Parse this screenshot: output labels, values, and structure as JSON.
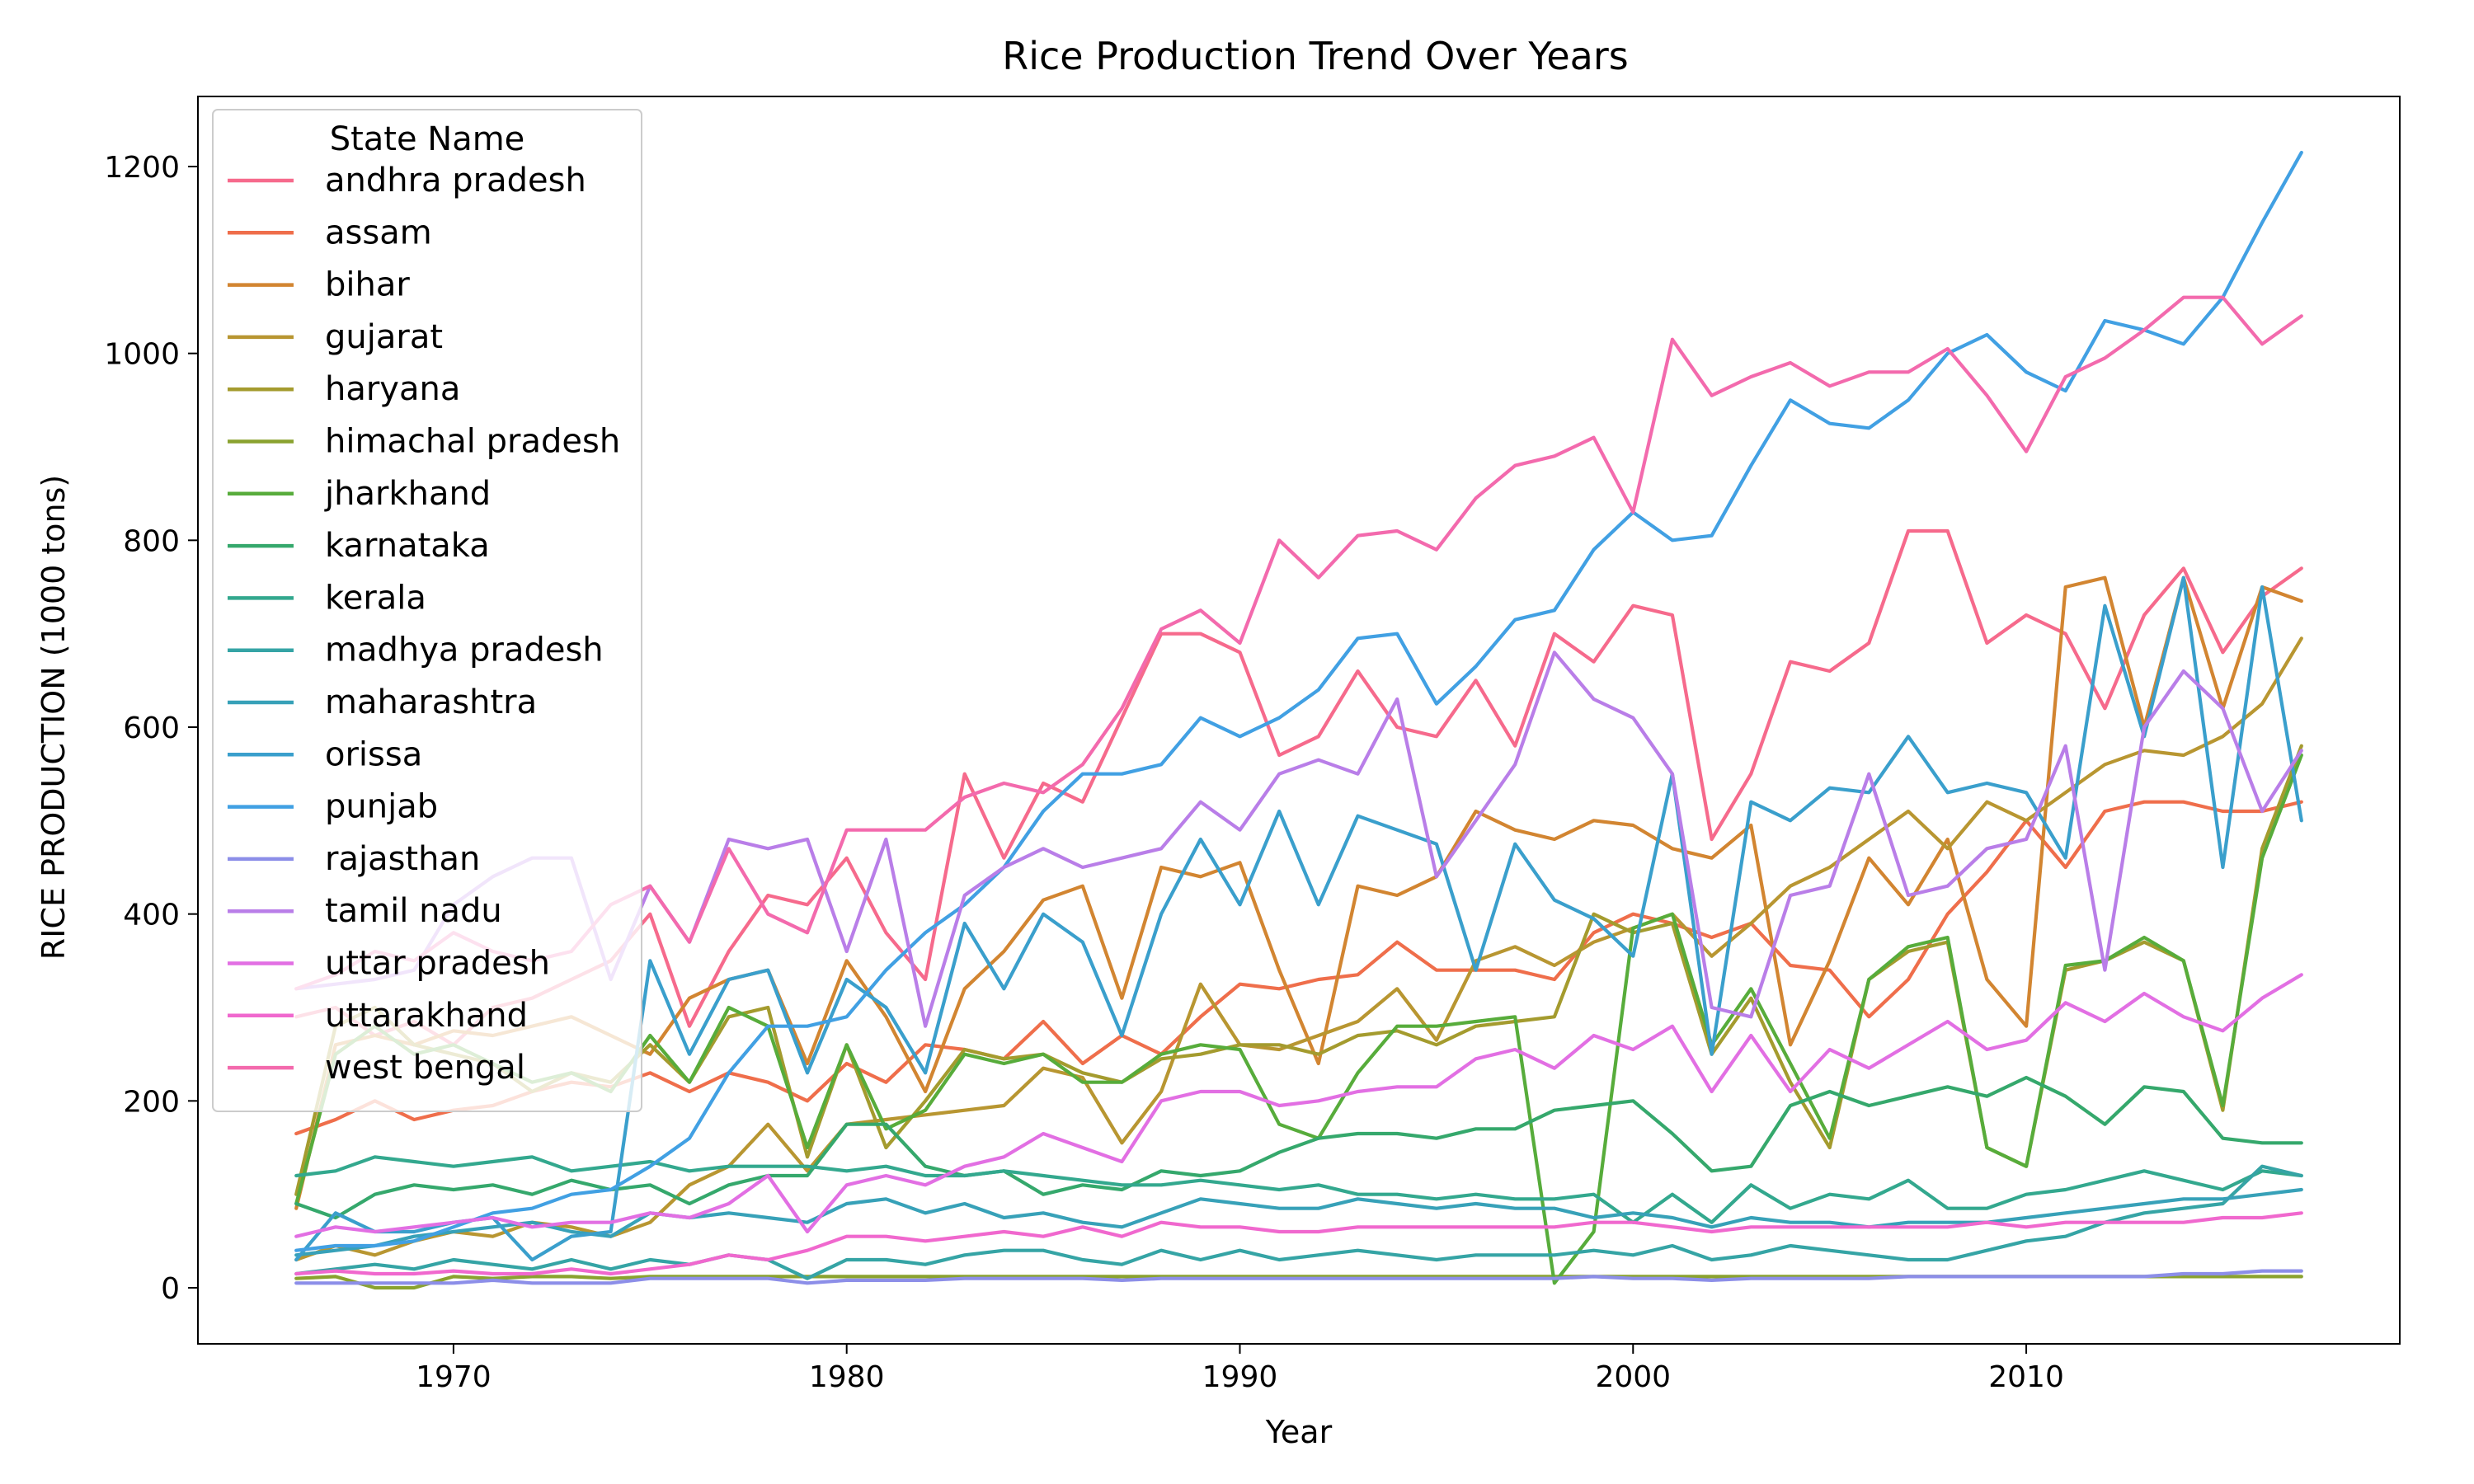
{
  "chart_data": {
    "type": "line",
    "title": "Rice Production Trend Over Years",
    "xlabel": "Year",
    "ylabel": "RICE PRODUCTION (1000 tons)",
    "xlim": [
      1963.5,
      2019.5
    ],
    "ylim": [
      -60,
      1275
    ],
    "x_ticks": [
      1970,
      1980,
      1990,
      2000,
      2010
    ],
    "y_ticks": [
      0,
      200,
      400,
      600,
      800,
      1000,
      1200
    ],
    "grid": false,
    "legend": {
      "title": "State Name",
      "placement": "top-left"
    },
    "x": [
      1966,
      1967,
      1968,
      1969,
      1970,
      1971,
      1972,
      1973,
      1974,
      1975,
      1976,
      1977,
      1978,
      1979,
      1980,
      1981,
      1982,
      1983,
      1984,
      1985,
      1986,
      1987,
      1988,
      1989,
      1990,
      1991,
      1992,
      1993,
      1994,
      1995,
      1996,
      1997,
      1998,
      1999,
      2000,
      2001,
      2002,
      2003,
      2004,
      2005,
      2006,
      2007,
      2008,
      2009,
      2010,
      2011,
      2012,
      2013,
      2014,
      2015,
      2016,
      2017
    ],
    "series": [
      {
        "name": "andhra pradesh",
        "color": "#f66a8c",
        "values": [
          290,
          300,
          270,
          285,
          260,
          300,
          310,
          330,
          350,
          400,
          280,
          360,
          420,
          410,
          460,
          380,
          330,
          550,
          460,
          540,
          520,
          610,
          700,
          700,
          680,
          570,
          590,
          660,
          600,
          590,
          650,
          580,
          700,
          670,
          730,
          720,
          480,
          550,
          670,
          660,
          690,
          810,
          810,
          690,
          720,
          700,
          620,
          720,
          770,
          680,
          740,
          770
        ]
      },
      {
        "name": "assam",
        "color": "#ef6e4b",
        "values": [
          165,
          180,
          200,
          180,
          190,
          195,
          210,
          220,
          215,
          230,
          210,
          230,
          220,
          200,
          240,
          220,
          260,
          255,
          245,
          285,
          240,
          270,
          250,
          290,
          325,
          320,
          330,
          335,
          370,
          340,
          340,
          340,
          330,
          380,
          400,
          390,
          375,
          390,
          345,
          340,
          290,
          330,
          400,
          445,
          500,
          450,
          510,
          520,
          520,
          510,
          510,
          520
        ]
      },
      {
        "name": "bihar",
        "color": "#d28531",
        "values": [
          85,
          260,
          270,
          260,
          275,
          270,
          280,
          290,
          270,
          250,
          310,
          330,
          340,
          240,
          350,
          290,
          210,
          320,
          360,
          415,
          430,
          310,
          450,
          440,
          455,
          340,
          240,
          430,
          420,
          440,
          510,
          490,
          480,
          500,
          495,
          470,
          460,
          495,
          260,
          350,
          460,
          410,
          480,
          330,
          280,
          750,
          760,
          600,
          760,
          620,
          750,
          735
        ]
      },
      {
        "name": "gujarat",
        "color": "#b89631",
        "values": [
          30,
          45,
          35,
          50,
          60,
          55,
          70,
          65,
          55,
          70,
          110,
          130,
          175,
          125,
          175,
          180,
          185,
          190,
          195,
          235,
          225,
          155,
          210,
          325,
          260,
          255,
          270,
          285,
          320,
          265,
          350,
          365,
          345,
          370,
          385,
          400,
          355,
          390,
          430,
          450,
          480,
          510,
          470,
          520,
          500,
          530,
          560,
          575,
          570,
          590,
          625,
          695
        ]
      },
      {
        "name": "haryana",
        "color": "#a49b2e",
        "values": [
          100,
          280,
          300,
          260,
          250,
          240,
          210,
          230,
          220,
          260,
          220,
          290,
          300,
          140,
          260,
          150,
          200,
          255,
          245,
          250,
          230,
          220,
          245,
          250,
          260,
          260,
          250,
          270,
          275,
          260,
          280,
          285,
          290,
          400,
          380,
          390,
          250,
          310,
          220,
          150,
          330,
          360,
          370,
          150,
          130,
          340,
          350,
          370,
          350,
          190,
          470,
          580
        ]
      },
      {
        "name": "himachal pradesh",
        "color": "#8aa22f",
        "values": [
          10,
          12,
          0,
          0,
          12,
          10,
          12,
          12,
          10,
          12,
          12,
          12,
          12,
          12,
          12,
          12,
          12,
          12,
          12,
          12,
          12,
          12,
          12,
          12,
          12,
          12,
          12,
          12,
          12,
          12,
          12,
          12,
          12,
          12,
          12,
          12,
          12,
          12,
          12,
          12,
          12,
          12,
          12,
          12,
          12,
          12,
          12,
          12,
          12,
          12,
          12,
          12
        ]
      },
      {
        "name": "jharkhand",
        "color": "#57ac3b",
        "values": [
          90,
          250,
          280,
          250,
          260,
          240,
          220,
          230,
          210,
          270,
          220,
          300,
          280,
          150,
          260,
          170,
          190,
          250,
          240,
          250,
          220,
          220,
          250,
          260,
          255,
          175,
          160,
          230,
          280,
          280,
          285,
          290,
          5,
          60,
          385,
          400,
          260,
          320,
          240,
          160,
          330,
          365,
          375,
          150,
          130,
          345,
          350,
          375,
          350,
          195,
          460,
          570
        ]
      },
      {
        "name": "karnataka",
        "color": "#35a86c",
        "values": [
          90,
          75,
          100,
          110,
          105,
          110,
          100,
          115,
          105,
          110,
          90,
          110,
          120,
          120,
          175,
          175,
          130,
          120,
          125,
          100,
          110,
          105,
          125,
          120,
          125,
          145,
          160,
          165,
          165,
          160,
          170,
          170,
          190,
          195,
          200,
          165,
          125,
          130,
          195,
          210,
          195,
          205,
          215,
          205,
          225,
          205,
          175,
          215,
          210,
          160,
          155,
          155
        ]
      },
      {
        "name": "kerala",
        "color": "#33a88e",
        "values": [
          120,
          125,
          140,
          135,
          130,
          135,
          140,
          125,
          130,
          135,
          125,
          130,
          130,
          130,
          125,
          130,
          120,
          120,
          125,
          120,
          115,
          110,
          110,
          115,
          110,
          105,
          110,
          100,
          100,
          95,
          100,
          95,
          95,
          100,
          70,
          100,
          70,
          110,
          85,
          100,
          95,
          115,
          85,
          85,
          100,
          105,
          115,
          125,
          115,
          105,
          125,
          120
        ]
      },
      {
        "name": "madhya pradesh",
        "color": "#35a4a5",
        "values": [
          15,
          20,
          25,
          20,
          30,
          25,
          20,
          30,
          20,
          30,
          25,
          35,
          30,
          10,
          30,
          30,
          25,
          35,
          40,
          40,
          30,
          25,
          40,
          30,
          40,
          30,
          35,
          40,
          35,
          30,
          35,
          35,
          35,
          40,
          35,
          45,
          30,
          35,
          45,
          40,
          35,
          30,
          30,
          40,
          50,
          55,
          70,
          80,
          85,
          90,
          130,
          120
        ]
      },
      {
        "name": "maharashtra",
        "color": "#37a1b8",
        "values": [
          35,
          40,
          45,
          55,
          60,
          65,
          70,
          60,
          55,
          80,
          75,
          80,
          75,
          70,
          90,
          95,
          80,
          90,
          75,
          80,
          70,
          65,
          80,
          95,
          90,
          85,
          85,
          95,
          90,
          85,
          90,
          85,
          85,
          75,
          80,
          75,
          65,
          75,
          70,
          70,
          65,
          70,
          70,
          70,
          75,
          80,
          85,
          90,
          95,
          95,
          100,
          105
        ]
      },
      {
        "name": "orissa",
        "color": "#3a9fcc",
        "values": [
          30,
          80,
          60,
          60,
          70,
          75,
          30,
          55,
          60,
          350,
          250,
          330,
          340,
          230,
          330,
          300,
          230,
          390,
          320,
          400,
          370,
          270,
          400,
          480,
          410,
          510,
          410,
          505,
          490,
          475,
          340,
          475,
          415,
          395,
          355,
          550,
          250,
          520,
          500,
          535,
          530,
          590,
          530,
          540,
          530,
          460,
          730,
          590,
          760,
          450,
          750,
          500
        ]
      },
      {
        "name": "punjab",
        "color": "#41a0e3",
        "values": [
          40,
          45,
          45,
          50,
          65,
          80,
          85,
          100,
          105,
          130,
          160,
          230,
          280,
          280,
          290,
          340,
          380,
          410,
          450,
          510,
          550,
          550,
          560,
          610,
          590,
          610,
          640,
          695,
          700,
          625,
          665,
          715,
          725,
          790,
          830,
          800,
          805,
          880,
          950,
          925,
          920,
          950,
          1000,
          1020,
          980,
          960,
          1035,
          1025,
          1010,
          1060,
          1140,
          1215
        ]
      },
      {
        "name": "rajasthan",
        "color": "#8c8ee8",
        "values": [
          5,
          5,
          5,
          5,
          5,
          8,
          5,
          5,
          5,
          10,
          10,
          10,
          10,
          5,
          8,
          8,
          8,
          10,
          10,
          10,
          10,
          8,
          10,
          10,
          10,
          10,
          10,
          10,
          10,
          10,
          10,
          10,
          10,
          12,
          10,
          10,
          8,
          10,
          10,
          10,
          10,
          12,
          12,
          12,
          12,
          12,
          12,
          12,
          15,
          15,
          18,
          18
        ]
      },
      {
        "name": "tamil nadu",
        "color": "#b97ee8",
        "values": [
          320,
          325,
          330,
          340,
          410,
          440,
          460,
          460,
          330,
          430,
          370,
          480,
          470,
          480,
          360,
          480,
          280,
          420,
          450,
          470,
          450,
          460,
          470,
          520,
          490,
          550,
          565,
          550,
          630,
          440,
          500,
          560,
          680,
          630,
          610,
          550,
          300,
          290,
          420,
          430,
          550,
          420,
          430,
          470,
          480,
          580,
          340,
          600,
          660,
          620,
          510,
          575
        ]
      },
      {
        "name": "uttar pradesh",
        "color": "#e26fe3",
        "values": [
          55,
          65,
          60,
          65,
          70,
          75,
          65,
          70,
          70,
          80,
          75,
          90,
          120,
          60,
          110,
          120,
          110,
          130,
          140,
          165,
          150,
          135,
          200,
          210,
          210,
          195,
          200,
          210,
          215,
          215,
          245,
          255,
          235,
          270,
          255,
          280,
          210,
          270,
          210,
          255,
          235,
          260,
          285,
          255,
          265,
          305,
          285,
          315,
          290,
          275,
          310,
          335
        ]
      },
      {
        "name": "uttarakhand",
        "color": "#f068ce",
        "values": [
          15,
          18,
          15,
          15,
          18,
          15,
          15,
          20,
          15,
          20,
          25,
          35,
          30,
          40,
          55,
          55,
          50,
          55,
          60,
          55,
          65,
          55,
          70,
          65,
          65,
          60,
          60,
          65,
          65,
          65,
          65,
          65,
          65,
          70,
          70,
          65,
          60,
          65,
          65,
          65,
          65,
          65,
          65,
          70,
          65,
          70,
          70,
          70,
          70,
          75,
          75,
          80
        ]
      },
      {
        "name": "west bengal",
        "color": "#f36aad",
        "values": [
          320,
          335,
          360,
          350,
          380,
          360,
          350,
          360,
          410,
          430,
          370,
          470,
          400,
          380,
          490,
          490,
          490,
          525,
          540,
          530,
          560,
          620,
          705,
          725,
          690,
          800,
          760,
          805,
          810,
          790,
          845,
          880,
          890,
          910,
          830,
          1015,
          955,
          975,
          990,
          965,
          980,
          980,
          1005,
          955,
          895,
          975,
          995,
          1025,
          1060,
          1060,
          1010,
          1040
        ]
      }
    ]
  }
}
